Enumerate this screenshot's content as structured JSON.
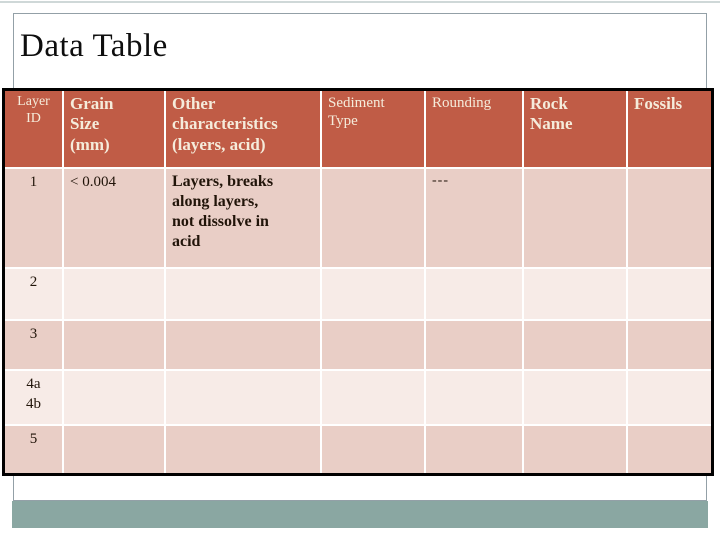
{
  "slide": {
    "title": "Data Table"
  },
  "theme": {
    "header_bg": "#c05c46",
    "header_text": "#f5ecdb",
    "row_odd_bg": "#e9cec6",
    "row_even_bg": "#f7ebe7",
    "body_text": "#211409",
    "outer_border": "#000000",
    "grid_line": "#ffffff",
    "accent_band": "#8aa7a2",
    "frame_border": "#93a0a7"
  },
  "table": {
    "columns": [
      {
        "label": "Layer\nID"
      },
      {
        "label": "Grain\nSize\n(mm)"
      },
      {
        "label": "Other\ncharacteristics\n(layers, acid)"
      },
      {
        "label": "Sediment\nType"
      },
      {
        "label": "Rounding"
      },
      {
        "label": "Rock\nName"
      },
      {
        "label": "Fossils"
      }
    ],
    "rows": [
      {
        "cells": [
          "1",
          "< 0.004",
          "Layers, breaks\nalong layers,\nnot dissolve in\nacid",
          "",
          "---",
          "",
          ""
        ]
      },
      {
        "cells": [
          "2",
          "",
          "",
          "",
          "",
          "",
          ""
        ]
      },
      {
        "cells": [
          "3",
          "",
          "",
          "",
          "",
          "",
          ""
        ]
      },
      {
        "cells": [
          "4a\n4b",
          "",
          "",
          "",
          "",
          "",
          ""
        ]
      },
      {
        "cells": [
          "5",
          "",
          "",
          "",
          "",
          "",
          ""
        ]
      }
    ]
  }
}
